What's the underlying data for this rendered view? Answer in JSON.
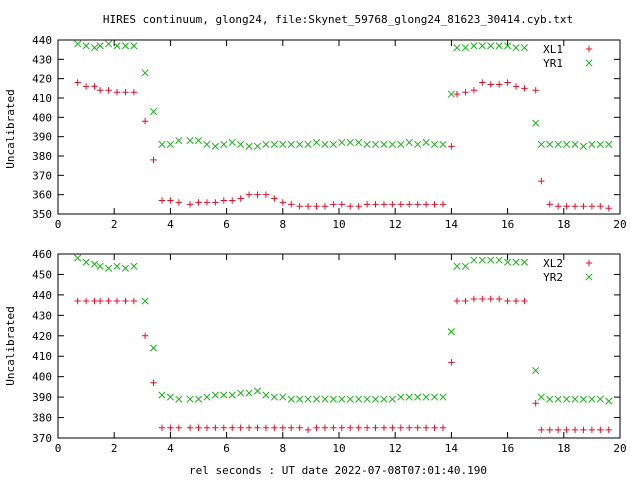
{
  "title": "HIRES continuum, glong24, file:Skynet_59768_glong24_81623_30414.cyb.txt",
  "xlabel": "rel seconds : UT date 2022-07-08T07:01:40.190",
  "colors": {
    "red": "#e0102a",
    "green": "#18b018"
  },
  "chart_data": [
    {
      "type": "scatter",
      "ylabel": "Uncalibrated",
      "xlim": [
        0,
        20
      ],
      "ylim": [
        350,
        440
      ],
      "xticks": [
        0,
        2,
        4,
        6,
        8,
        10,
        12,
        14,
        16,
        18,
        20
      ],
      "yticks": [
        350,
        360,
        370,
        380,
        390,
        400,
        410,
        420,
        430,
        440
      ],
      "legend_position": "top-right",
      "series": [
        {
          "name": "XL1",
          "marker": "+",
          "color": "#e0102a",
          "x": [
            0.7,
            1,
            1.3,
            1.5,
            1.8,
            2.1,
            2.4,
            2.7,
            3.1,
            3.4,
            3.7,
            4,
            4.3,
            4.7,
            5,
            5.3,
            5.6,
            5.9,
            6.2,
            6.5,
            6.8,
            7.1,
            7.4,
            7.7,
            8,
            8.3,
            8.6,
            8.9,
            9.2,
            9.5,
            9.8,
            10.1,
            10.4,
            10.7,
            11,
            11.3,
            11.6,
            11.9,
            12.2,
            12.5,
            12.8,
            13.1,
            13.4,
            13.7,
            14,
            14.2,
            14.5,
            14.8,
            15.1,
            15.4,
            15.7,
            16,
            16.3,
            16.6,
            17,
            17.2,
            17.5,
            17.8,
            18.1,
            18.4,
            18.7,
            19,
            19.3,
            19.6
          ],
          "y": [
            418,
            416,
            416,
            414,
            414,
            413,
            413,
            413,
            398,
            378,
            357,
            357,
            356,
            355,
            356,
            356,
            356,
            357,
            357,
            358,
            360,
            360,
            360,
            358,
            356,
            355,
            354,
            354,
            354,
            354,
            355,
            355,
            354,
            354,
            355,
            355,
            355,
            355,
            355,
            355,
            355,
            355,
            355,
            355,
            385,
            412,
            413,
            414,
            418,
            417,
            417,
            418,
            416,
            415,
            414,
            367,
            355,
            354,
            354,
            354,
            354,
            354,
            354,
            353
          ]
        },
        {
          "name": "YR1",
          "marker": "x",
          "color": "#18b018",
          "x": [
            0.7,
            1,
            1.3,
            1.5,
            1.8,
            2.1,
            2.4,
            2.7,
            3.1,
            3.4,
            3.7,
            4,
            4.3,
            4.7,
            5,
            5.3,
            5.6,
            5.9,
            6.2,
            6.5,
            6.8,
            7.1,
            7.4,
            7.7,
            8,
            8.3,
            8.6,
            8.9,
            9.2,
            9.5,
            9.8,
            10.1,
            10.4,
            10.7,
            11,
            11.3,
            11.6,
            11.9,
            12.2,
            12.5,
            12.8,
            13.1,
            13.4,
            13.7,
            14,
            14.2,
            14.5,
            14.8,
            15.1,
            15.4,
            15.7,
            16,
            16.3,
            16.6,
            17,
            17.2,
            17.5,
            17.8,
            18.1,
            18.4,
            18.7,
            19,
            19.3,
            19.6
          ],
          "y": [
            438,
            437,
            436,
            437,
            438,
            437,
            437,
            437,
            423,
            403,
            386,
            386,
            388,
            388,
            388,
            386,
            385,
            386,
            387,
            386,
            385,
            385,
            386,
            386,
            386,
            386,
            386,
            386,
            387,
            386,
            386,
            387,
            387,
            387,
            386,
            386,
            386,
            386,
            386,
            387,
            386,
            387,
            386,
            386,
            412,
            436,
            436,
            437,
            437,
            437,
            437,
            437,
            436,
            436,
            397,
            386,
            386,
            386,
            386,
            386,
            385,
            386,
            386,
            386
          ]
        }
      ]
    },
    {
      "type": "scatter",
      "ylabel": "Uncalibrated",
      "xlim": [
        0,
        20
      ],
      "ylim": [
        370,
        460
      ],
      "xticks": [
        0,
        2,
        4,
        6,
        8,
        10,
        12,
        14,
        16,
        18,
        20
      ],
      "yticks": [
        370,
        380,
        390,
        400,
        410,
        420,
        430,
        440,
        450,
        460
      ],
      "legend_position": "top-right",
      "series": [
        {
          "name": "XL2",
          "marker": "+",
          "color": "#e0102a",
          "x": [
            0.7,
            1,
            1.3,
            1.5,
            1.8,
            2.1,
            2.4,
            2.7,
            3.1,
            3.4,
            3.7,
            4,
            4.3,
            4.7,
            5,
            5.3,
            5.6,
            5.9,
            6.2,
            6.5,
            6.8,
            7.1,
            7.4,
            7.7,
            8,
            8.3,
            8.6,
            8.9,
            9.2,
            9.5,
            9.8,
            10.1,
            10.4,
            10.7,
            11,
            11.3,
            11.6,
            11.9,
            12.2,
            12.5,
            12.8,
            13.1,
            13.4,
            13.7,
            14,
            14.2,
            14.5,
            14.8,
            15.1,
            15.4,
            15.7,
            16,
            16.3,
            16.6,
            17,
            17.2,
            17.5,
            17.8,
            18.1,
            18.4,
            18.7,
            19,
            19.3,
            19.6
          ],
          "y": [
            437,
            437,
            437,
            437,
            437,
            437,
            437,
            437,
            420,
            397,
            375,
            375,
            375,
            375,
            375,
            375,
            375,
            375,
            375,
            375,
            375,
            375,
            375,
            375,
            375,
            375,
            375,
            374,
            375,
            375,
            375,
            375,
            375,
            375,
            375,
            375,
            375,
            375,
            375,
            375,
            375,
            375,
            375,
            375,
            407,
            437,
            437,
            438,
            438,
            438,
            438,
            437,
            437,
            437,
            387,
            374,
            374,
            374,
            374,
            374,
            374,
            374,
            374,
            374
          ]
        },
        {
          "name": "YR2",
          "marker": "x",
          "color": "#18b018",
          "x": [
            0.7,
            1,
            1.3,
            1.5,
            1.8,
            2.1,
            2.4,
            2.7,
            3.1,
            3.4,
            3.7,
            4,
            4.3,
            4.7,
            5,
            5.3,
            5.6,
            5.9,
            6.2,
            6.5,
            6.8,
            7.1,
            7.4,
            7.7,
            8,
            8.3,
            8.6,
            8.9,
            9.2,
            9.5,
            9.8,
            10.1,
            10.4,
            10.7,
            11,
            11.3,
            11.6,
            11.9,
            12.2,
            12.5,
            12.8,
            13.1,
            13.4,
            13.7,
            14,
            14.2,
            14.5,
            14.8,
            15.1,
            15.4,
            15.7,
            16,
            16.3,
            16.6,
            17,
            17.2,
            17.5,
            17.8,
            18.1,
            18.4,
            18.7,
            19,
            19.3,
            19.6
          ],
          "y": [
            458,
            456,
            455,
            454,
            453,
            454,
            453,
            454,
            437,
            414,
            391,
            390,
            389,
            389,
            389,
            390,
            391,
            391,
            391,
            392,
            392,
            393,
            391,
            390,
            390,
            389,
            389,
            389,
            389,
            389,
            389,
            389,
            389,
            389,
            389,
            389,
            389,
            389,
            390,
            390,
            390,
            390,
            390,
            390,
            422,
            454,
            454,
            457,
            457,
            457,
            457,
            456,
            456,
            456,
            403,
            390,
            389,
            389,
            389,
            389,
            389,
            389,
            389,
            388
          ]
        }
      ]
    }
  ]
}
